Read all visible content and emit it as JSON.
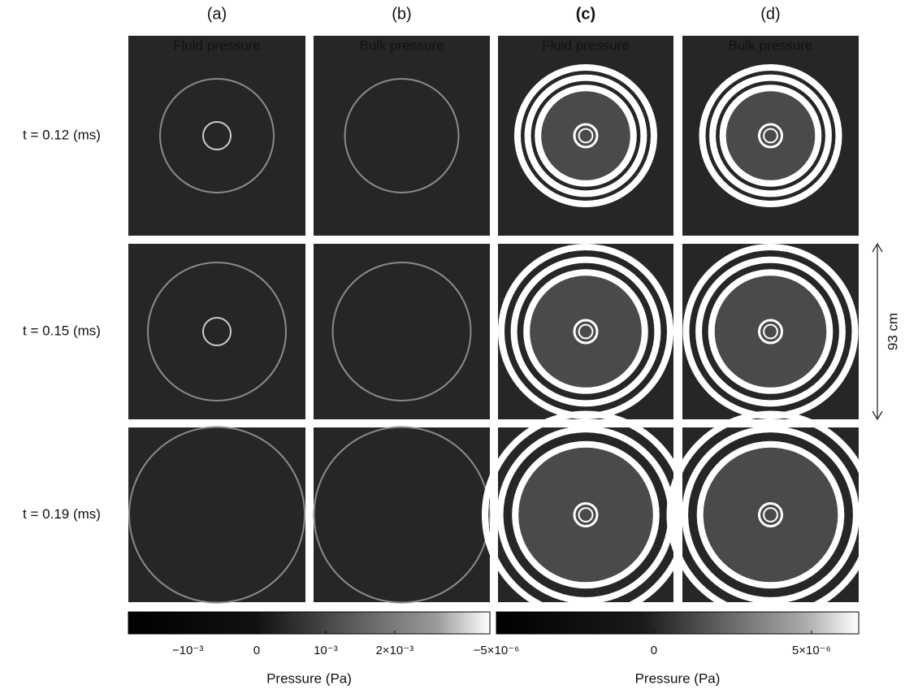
{
  "columns": [
    {
      "letter": "(a)",
      "label": "Fluid pressure"
    },
    {
      "letter": "(b)",
      "label": "Bulk pressure"
    },
    {
      "letter": "(c)",
      "label": "Fluid pressure"
    },
    {
      "letter": "(d)",
      "label": "Bulk pressure"
    }
  ],
  "rows": [
    "t = 0.12 (ms)",
    "t = 0.15 (ms)",
    "t = 0.19 (ms)"
  ],
  "colorbars": [
    {
      "clim": [
        -0.00186,
        0.00338
      ],
      "ticks": [
        {
          "value": -0.001,
          "label": "−10⁻³"
        },
        0,
        {
          "value": 0.001,
          "label": "10⁻³"
        },
        {
          "value": 0.002,
          "label": "2×10⁻³"
        }
      ],
      "label": "Pressure (Pa)"
    },
    {
      "clim": [
        -5e-06,
        6.5e-06
      ],
      "ticks": [
        {
          "value": -5e-06,
          "label": "−5×10⁻⁶"
        },
        0,
        {
          "value": 5e-06,
          "label": "5×10⁻⁶"
        }
      ],
      "label": "Pressure (Pa)"
    }
  ],
  "scale_label": "93 cm"
}
